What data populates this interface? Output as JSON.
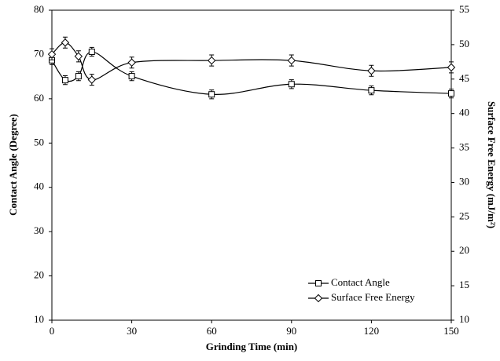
{
  "chart_data": {
    "type": "line",
    "x_label": "Grinding Time (min)",
    "y_label": "Contact Angle (Degree)",
    "y2_label": "Surface Free Energy (mJ/m²)",
    "x": [
      0,
      5,
      10,
      15,
      30,
      60,
      90,
      120,
      150
    ],
    "xlim": [
      0,
      150
    ],
    "xticks": [
      0,
      30,
      60,
      90,
      120,
      150
    ],
    "ylim": [
      10,
      80
    ],
    "yticks": [
      10,
      20,
      30,
      40,
      50,
      60,
      70,
      80
    ],
    "y2lim": [
      10,
      55
    ],
    "y2ticks": [
      10,
      15,
      20,
      25,
      30,
      35,
      40,
      45,
      50,
      55
    ],
    "legend": "lower right",
    "series": [
      {
        "name": "Contact Angle",
        "color": "#000000",
        "marker": "square",
        "values": [
          68.7,
          64.2,
          65.1,
          70.6,
          65.1,
          61.0,
          63.3,
          61.9,
          61.2
        ],
        "error": [
          1.0,
          1.0,
          1.0,
          1.0,
          1.0,
          1.0,
          1.0,
          1.0,
          1.0
        ]
      },
      {
        "name": "Surface Free Energy",
        "color": "#000000",
        "marker": "diamond",
        "axis": "y2",
        "values": [
          48.6,
          50.3,
          48.3,
          44.9,
          47.4,
          47.7,
          47.7,
          46.2,
          46.7
        ],
        "error": [
          0.8,
          0.8,
          0.8,
          0.8,
          0.8,
          0.8,
          0.8,
          0.8,
          0.8
        ]
      }
    ]
  }
}
